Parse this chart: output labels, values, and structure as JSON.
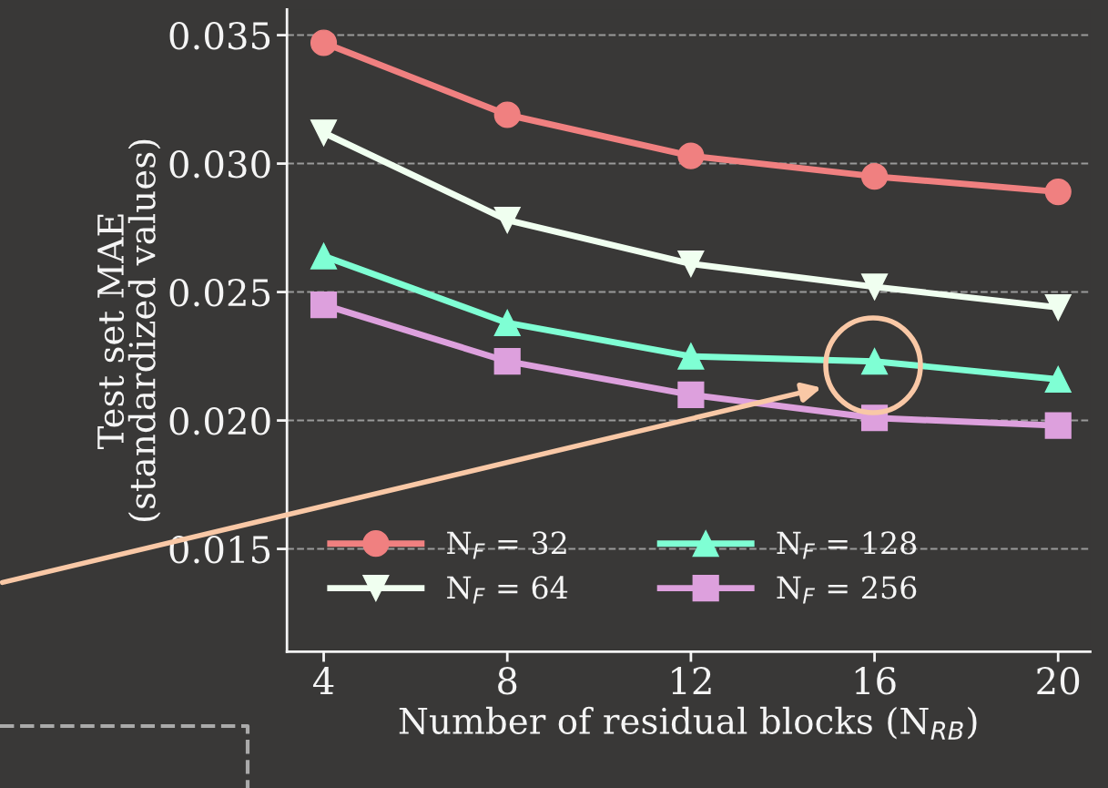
{
  "chart_data": {
    "type": "line",
    "xlabel": "Number of residual blocks (N$_{RB}$)",
    "ylabel": "Test set MAE\n(standardized values)",
    "x": [
      4,
      8,
      12,
      16,
      20
    ],
    "series": [
      {
        "name": "N$_{F}$ = 32",
        "color": "#f08080",
        "marker": "circle",
        "values": [
          0.0347,
          0.0319,
          0.0303,
          0.0295,
          0.0289
        ]
      },
      {
        "name": "N$_{F}$ = 64",
        "color": "#f0fff0",
        "marker": "triangle_down",
        "values": [
          0.0312,
          0.0278,
          0.0261,
          0.0252,
          0.0244
        ]
      },
      {
        "name": "N$_{F}$ = 128",
        "color": "#7fffd4",
        "marker": "triangle",
        "values": [
          0.0264,
          0.0238,
          0.0225,
          0.0223,
          0.0216
        ]
      },
      {
        "name": "N$_{F}$ = 256",
        "color": "#dda0dd",
        "marker": "square",
        "values": [
          0.0245,
          0.0223,
          0.021,
          0.0201,
          0.0198
        ]
      }
    ],
    "xlim": [
      3.2,
      20.7
    ],
    "xticks": [
      4,
      8,
      12,
      16,
      20
    ],
    "ylim": [
      0.011,
      0.036
    ],
    "yticks": [
      {
        "value": 0.015,
        "label": "0.015"
      },
      {
        "value": 0.02,
        "label": "0.020"
      },
      {
        "value": 0.025,
        "label": "0.025"
      },
      {
        "value": 0.03,
        "label": "0.030"
      },
      {
        "value": 0.035,
        "label": "0.035"
      }
    ],
    "grid": "y",
    "legend": "bottom left",
    "line_style": "solid"
  }
}
